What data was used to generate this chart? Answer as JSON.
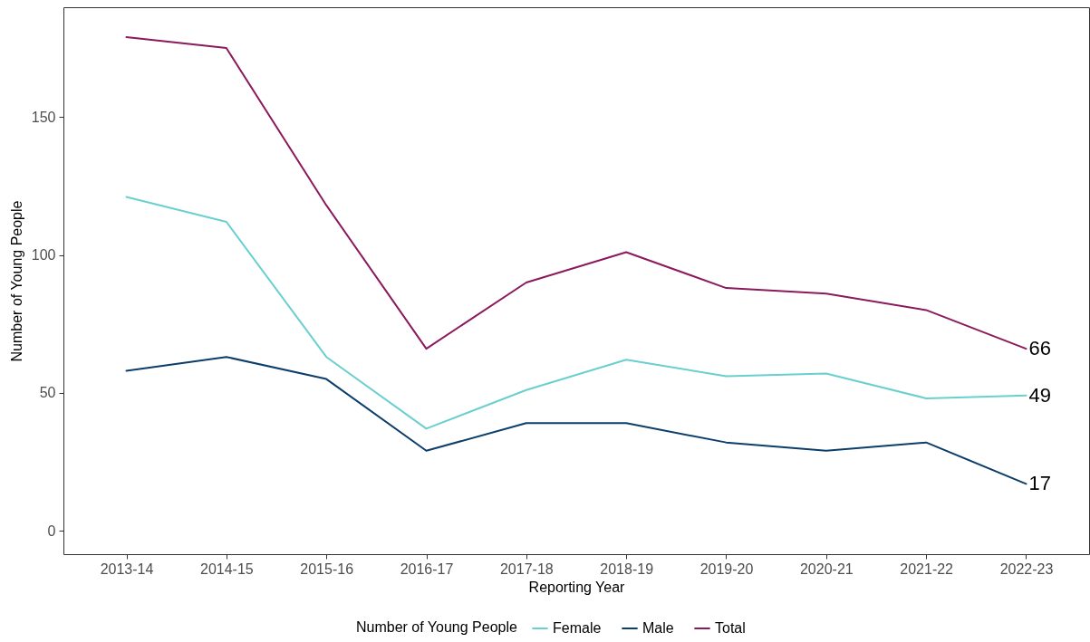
{
  "chart_data": {
    "type": "line",
    "xlabel": "Reporting Year",
    "ylabel": "Number of Young People",
    "legend_title": "Number of Young People",
    "legend": "bottom",
    "grid": false,
    "marker": "none",
    "line_style": "solid",
    "categories": [
      "2013-14",
      "2014-15",
      "2015-16",
      "2016-17",
      "2017-18",
      "2018-19",
      "2019-20",
      "2020-21",
      "2021-22",
      "2022-23"
    ],
    "ylim": [
      -8.5,
      189.8
    ],
    "yticks": [
      0,
      50,
      100,
      150
    ],
    "series": [
      {
        "name": "Female",
        "color": "#6acfcf",
        "values": [
          121,
          112,
          63,
          37,
          51,
          62,
          56,
          57,
          48,
          49
        ],
        "value_labels": [
          null,
          null,
          null,
          null,
          null,
          null,
          null,
          null,
          null,
          "49"
        ]
      },
      {
        "name": "Male",
        "color": "#0b3e6b",
        "values": [
          58,
          63,
          55,
          29,
          39,
          39,
          32,
          29,
          32,
          17
        ],
        "value_labels": [
          null,
          null,
          null,
          null,
          null,
          null,
          null,
          null,
          null,
          "17"
        ]
      },
      {
        "name": "Total",
        "color": "#8b1a5c",
        "values": [
          179,
          175,
          118,
          66,
          90,
          101,
          88,
          86,
          80,
          66
        ],
        "value_labels": [
          null,
          null,
          null,
          null,
          null,
          null,
          null,
          null,
          null,
          "66"
        ]
      }
    ]
  }
}
